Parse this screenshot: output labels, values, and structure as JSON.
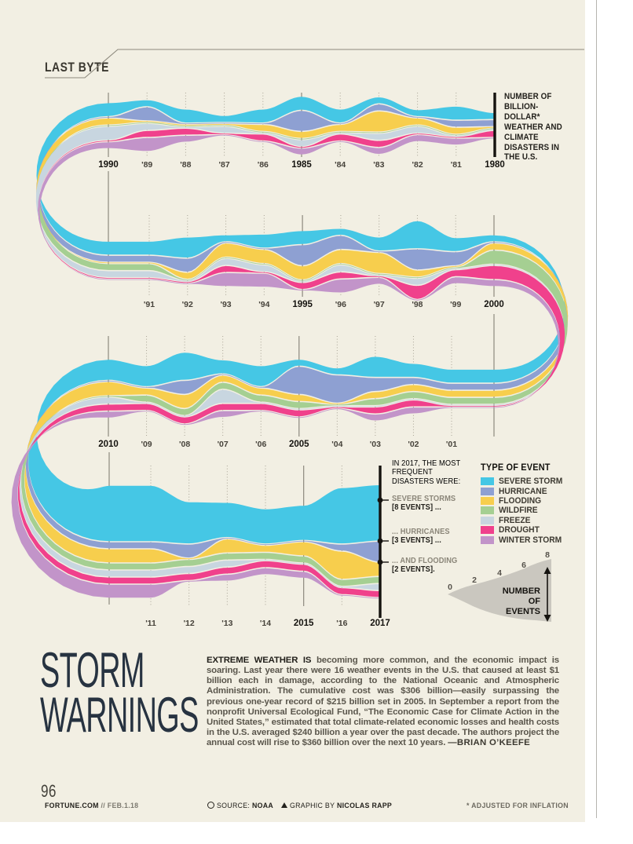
{
  "header": {
    "section_label": "LAST BYTE"
  },
  "chart": {
    "side_note": "NUMBER OF\nBILLION-\nDOLLAR*\nWEATHER AND\nCLIMATE\nDISASTERS IN\nTHE U.S.",
    "legend": {
      "title": "TYPE OF EVENT",
      "items": [
        {
          "label": "SEVERE STORM",
          "color": "#45C7E5"
        },
        {
          "label": "HURRICANE",
          "color": "#8EA0D2"
        },
        {
          "label": "FLOODING",
          "color": "#F7CE4D"
        },
        {
          "label": "WILDFIRE",
          "color": "#A5CF92"
        },
        {
          "label": "FREEZE",
          "color": "#C8D6E0"
        },
        {
          "label": "DROUGHT",
          "color": "#F0418C"
        },
        {
          "label": "WINTER STORM",
          "color": "#C294C9"
        }
      ]
    },
    "scale": {
      "label_lines": [
        "NUMBER",
        "OF",
        "EVENTS"
      ],
      "ticks": [
        0,
        2,
        4,
        6,
        8
      ]
    },
    "annotations_2017": {
      "intro": "IN 2017, THE MOST\nFREQUENT\nDISASTERS WERE:",
      "items": [
        {
          "label": "SEVERE STORMS",
          "value": "[8 EVENTS] ..."
        },
        {
          "label": "... HURRICANES",
          "value": "[3 EVENTS] ..."
        },
        {
          "label": "... AND FLOODING",
          "value": "[2 EVENTS]."
        }
      ]
    }
  },
  "chart_data": {
    "type": "area",
    "subtype": "serpentine-streamgraph",
    "title": "Number of billion-dollar* weather and climate disasters in the U.S.",
    "x": [
      1980,
      1981,
      1982,
      1983,
      1984,
      1985,
      1986,
      1987,
      1988,
      1989,
      1990,
      1991,
      1992,
      1993,
      1994,
      1995,
      1996,
      1997,
      1998,
      1999,
      2000,
      2001,
      2002,
      2003,
      2004,
      2005,
      2006,
      2007,
      2008,
      2009,
      2010,
      2011,
      2012,
      2013,
      2014,
      2015,
      2016,
      2017
    ],
    "units": "events per year (values estimated from graphic; scale 0-8 per band)",
    "series": [
      {
        "name": "Severe storm",
        "color": "#45C7E5",
        "values": [
          1,
          2,
          1,
          1,
          2,
          2,
          2,
          1,
          2,
          1,
          2,
          2,
          3,
          1,
          2,
          2,
          1,
          2,
          4,
          2,
          1,
          2,
          2,
          3,
          1,
          1,
          3,
          2,
          4,
          3,
          3,
          8,
          6,
          5,
          5,
          5,
          8,
          8
        ]
      },
      {
        "name": "Hurricane",
        "color": "#8EA0D2",
        "values": [
          1,
          1,
          0,
          1,
          0,
          3,
          0,
          0,
          0,
          2,
          0,
          1,
          2,
          0,
          0,
          3,
          2,
          0,
          3,
          2,
          0,
          1,
          1,
          2,
          4,
          4,
          0,
          0,
          2,
          0,
          0,
          1,
          2,
          0,
          0,
          0,
          1,
          3
        ]
      },
      {
        "name": "Flooding",
        "color": "#F7CE4D",
        "values": [
          0,
          1,
          1,
          3,
          1,
          1,
          1,
          0,
          0,
          0,
          1,
          0,
          1,
          2,
          2,
          2,
          2,
          3,
          1,
          0,
          1,
          1,
          1,
          1,
          0,
          1,
          1,
          1,
          2,
          1,
          2,
          2,
          0,
          2,
          1,
          2,
          4,
          2
        ]
      },
      {
        "name": "Wildfire",
        "color": "#A5CF92",
        "values": [
          0,
          0,
          0,
          0,
          0,
          0,
          0,
          0,
          0,
          0,
          0,
          1,
          0,
          0,
          0,
          0,
          0,
          0,
          0,
          0,
          2,
          1,
          1,
          1,
          0,
          1,
          1,
          1,
          1,
          1,
          0,
          1,
          1,
          1,
          1,
          1,
          1,
          1
        ]
      },
      {
        "name": "Freeze",
        "color": "#C8D6E0",
        "values": [
          0,
          0,
          1,
          1,
          0,
          1,
          0,
          1,
          0,
          1,
          2,
          1,
          0,
          1,
          1,
          0,
          1,
          0,
          1,
          0,
          0,
          0,
          0,
          0,
          0,
          0,
          0,
          2,
          0,
          0,
          1,
          1,
          1,
          1,
          0,
          0,
          0,
          1
        ]
      },
      {
        "name": "Drought",
        "color": "#F0418C",
        "values": [
          1,
          0,
          0,
          1,
          1,
          0,
          1,
          0,
          1,
          1,
          0,
          0,
          0,
          1,
          0,
          1,
          1,
          0,
          2,
          1,
          2,
          0,
          1,
          1,
          0,
          1,
          1,
          1,
          1,
          1,
          1,
          1,
          1,
          1,
          1,
          1,
          1,
          1
        ]
      },
      {
        "name": "Winter storm",
        "color": "#C294C9",
        "values": [
          0,
          1,
          1,
          1,
          0,
          1,
          0,
          0,
          1,
          2,
          1,
          0,
          0,
          2,
          2,
          0,
          2,
          1,
          0,
          1,
          1,
          0,
          1,
          1,
          0,
          0,
          0,
          1,
          0,
          0,
          1,
          2,
          0,
          1,
          1,
          1,
          0,
          0
        ]
      }
    ],
    "timeline_rows": [
      {
        "entries": [
          [
            "1990",
            1990,
            1
          ],
          [
            "'89",
            1989,
            0
          ],
          [
            "'88",
            1988,
            0
          ],
          [
            "'87",
            1987,
            0
          ],
          [
            "'86",
            1986,
            0
          ],
          [
            "1985",
            1985,
            1
          ],
          [
            "'84",
            1984,
            0
          ],
          [
            "'83",
            1983,
            0
          ],
          [
            "'82",
            1982,
            0
          ],
          [
            "'81",
            1981,
            0
          ],
          [
            "1980",
            1980,
            1
          ]
        ],
        "terminal": 1980
      },
      {
        "entries": [
          [
            "'91",
            1991,
            0
          ],
          [
            "'92",
            1992,
            0
          ],
          [
            "'93",
            1993,
            0
          ],
          [
            "'94",
            1994,
            0
          ],
          [
            "1995",
            1995,
            1
          ],
          [
            "'96",
            1996,
            0
          ],
          [
            "'97",
            1997,
            0
          ],
          [
            "'98",
            1998,
            0
          ],
          [
            "'99",
            1999,
            0
          ],
          [
            "2000",
            2000,
            1
          ]
        ]
      },
      {
        "entries": [
          [
            "2010",
            2010,
            1
          ],
          [
            "'09",
            2009,
            0
          ],
          [
            "'08",
            2008,
            0
          ],
          [
            "'07",
            2007,
            0
          ],
          [
            "'06",
            2006,
            0
          ],
          [
            "2005",
            2005,
            1
          ],
          [
            "'04",
            2004,
            0
          ],
          [
            "'03",
            2003,
            0
          ],
          [
            "'02",
            2002,
            0
          ],
          [
            "'01",
            2001,
            0
          ]
        ]
      },
      {
        "entries": [
          [
            "'11",
            2011,
            0
          ],
          [
            "'12",
            2012,
            0
          ],
          [
            "'13",
            2013,
            0
          ],
          [
            "'14",
            2014,
            0
          ],
          [
            "2015",
            2015,
            1
          ],
          [
            "'16",
            2016,
            0
          ],
          [
            "2017",
            2017,
            1
          ]
        ],
        "terminal": 2017
      }
    ],
    "annotations": [
      "In 2017, the most frequent disasters were: severe storms [8 events], hurricanes [3 events], and flooding [2 events]."
    ],
    "legend_position": "right of final row",
    "grid": "dotted vertical year lines; solid lines at milestone years; heavy black bars at 1980 and 2017"
  },
  "main": {
    "title_line1": "STORM",
    "title_line2": "WARNINGS",
    "body_lead": "EXTREME WEATHER IS",
    "body_text": " becoming more common, and the economic impact is soaring. Last year there were 16 weather events in the U.S. that caused at least $1 billion each in damage, according to the National Oceanic and Atmospheric Administration. The cumulative cost was $306 billion—easily surpassing the previous one-year record of $215 billion set in 2005. In September a report from the nonprofit Universal Ecological Fund, “The Economic Case for Climate Action in the United States,” estimated that total climate-related economic losses and health costs in the U.S. averaged $240 billion a year over the past decade. The authors project the annual cost will rise to $360 billion over the next 10 years. ",
    "body_author": "—BRIAN O’KEEFE"
  },
  "footer": {
    "page_number": "96",
    "brand": "FORTUNE.COM",
    "brand_suffix": "// FEB.1.18",
    "source_label": "SOURCE:",
    "source_value": "NOAA",
    "credit_label": "GRAPHIC BY",
    "credit_value": "NICOLAS RAPP",
    "footnote": "* ADJUSTED FOR INFLATION"
  },
  "colors": {
    "page_background": "#F2EFE3",
    "ink": "#23211c",
    "title_navy": "#273341",
    "annotation_gray": "#8b8679",
    "scale_triangle": "#cac7bf"
  }
}
